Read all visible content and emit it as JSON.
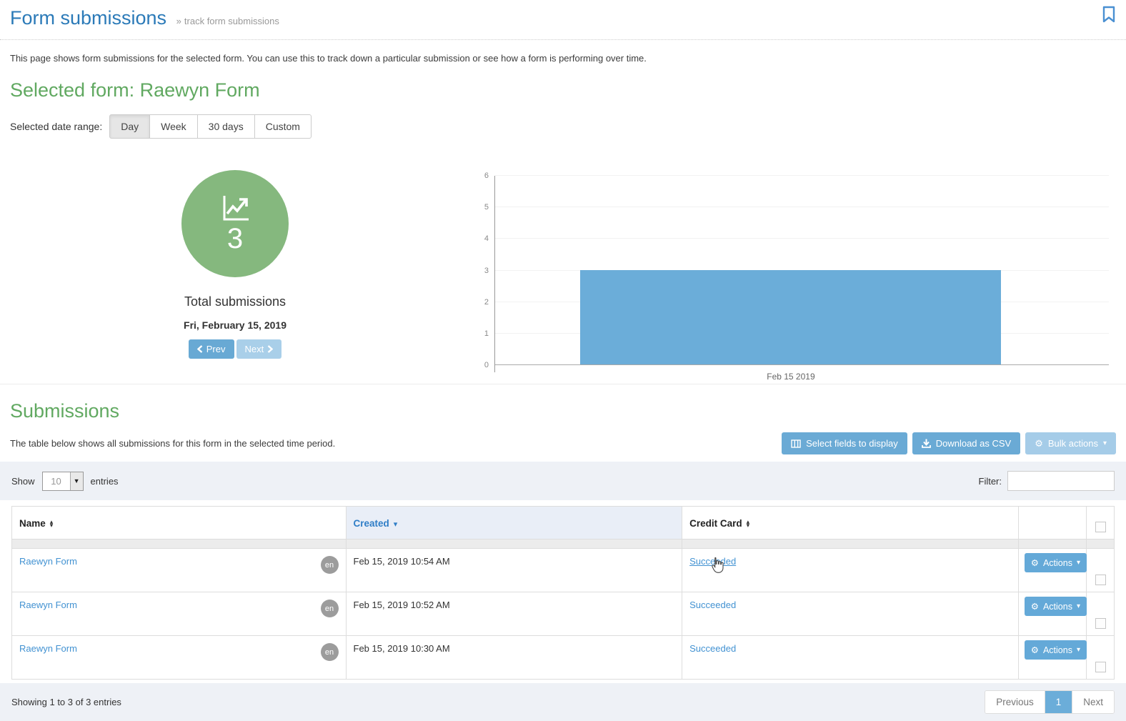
{
  "header": {
    "title": "Form submissions",
    "breadcrumb_sep": "»",
    "breadcrumb": "track form submissions"
  },
  "intro": "This page shows form submissions for the selected form. You can use this to track down a particular submission or see how a form is performing over time.",
  "selected_form_heading": "Selected form: Raewyn Form",
  "date_range": {
    "label": "Selected date range:",
    "options": [
      "Day",
      "Week",
      "30 days",
      "Custom"
    ],
    "active": "Day"
  },
  "summary": {
    "count": "3",
    "label": "Total submissions",
    "date": "Fri, February 15, 2019",
    "prev_label": "Prev",
    "next_label": "Next"
  },
  "chart_data": {
    "type": "bar",
    "categories": [
      "Feb 15 2019"
    ],
    "values": [
      3
    ],
    "title": "",
    "xlabel": "",
    "ylabel": "",
    "ylim": [
      0,
      6
    ],
    "yticks": [
      0,
      1,
      2,
      3,
      4,
      5,
      6
    ],
    "grid": true,
    "legend": false,
    "bar_color": "#6badd9",
    "bar_left_pct": 14,
    "bar_width_pct": 68.5
  },
  "submissions": {
    "heading": "Submissions",
    "description": "The table below shows all submissions for this form in the selected time period.",
    "select_fields_label": "Select fields to display",
    "download_csv_label": "Download as CSV",
    "bulk_actions_label": "Bulk actions"
  },
  "toolbar": {
    "show_label": "Show",
    "entries_value": "10",
    "entries_label": "entries",
    "filter_label": "Filter:"
  },
  "table": {
    "columns": [
      "Name",
      "Created",
      "Credit Card"
    ],
    "rows": [
      {
        "name": "Raewyn Form",
        "lang": "en",
        "created": "Feb 15, 2019 10:54 AM",
        "credit_card": "Succeeded",
        "actions_label": "Actions"
      },
      {
        "name": "Raewyn Form",
        "lang": "en",
        "created": "Feb 15, 2019 10:52 AM",
        "credit_card": "Succeeded",
        "actions_label": "Actions"
      },
      {
        "name": "Raewyn Form",
        "lang": "en",
        "created": "Feb 15, 2019 10:30 AM",
        "credit_card": "Succeeded",
        "actions_label": "Actions"
      }
    ]
  },
  "footer": {
    "summary": "Showing 1 to 3 of 3 entries",
    "previous_label": "Previous",
    "page": "1",
    "next_label": "Next"
  },
  "icons": {
    "gear": "⚙",
    "caret_down": "▾",
    "sort_up": "▴",
    "sort_down": "▾"
  },
  "colors": {
    "title_blue": "#2b7ab8",
    "heading_green": "#61a961",
    "circle_green": "#85b87e",
    "bar_blue": "#6badd9",
    "button_blue": "#6aaad5",
    "disabled_button_blue": "#a9cfe9",
    "link_blue": "#4292d2",
    "toolbar_bg": "#eef1f6"
  }
}
